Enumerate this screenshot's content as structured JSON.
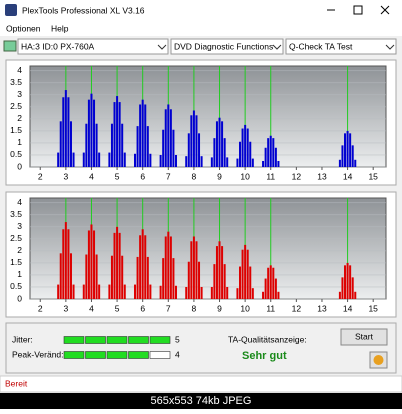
{
  "window": {
    "title": "PlexTools Professional XL V3.16"
  },
  "menu": [
    "Optionen",
    "Help"
  ],
  "toolbar": {
    "drive": "HA:3 ID:0  PX-760A",
    "function": "DVD Diagnostic Functions",
    "test": "Q-Check TA Test"
  },
  "chart_data": [
    {
      "type": "bar",
      "color": "#0000d0",
      "reference_color": "#22cc22",
      "reference_x": [
        3,
        4,
        5,
        6,
        7,
        8,
        9,
        10,
        11,
        14
      ],
      "xlim": [
        1.6,
        15.5
      ],
      "xticks": [
        2,
        3,
        4,
        5,
        6,
        7,
        8,
        9,
        10,
        11,
        12,
        13,
        14,
        15
      ],
      "ylim": [
        0,
        4.2
      ],
      "yticks": [
        0,
        0.5,
        1,
        1.5,
        2,
        2.5,
        3,
        3.5,
        4
      ],
      "x": [
        2.7,
        2.8,
        2.9,
        3,
        3.1,
        3.2,
        3.3,
        3.7,
        3.8,
        3.9,
        4,
        4.1,
        4.2,
        4.3,
        4.7,
        4.8,
        4.9,
        5,
        5.1,
        5.2,
        5.3,
        5.7,
        5.8,
        5.9,
        6,
        6.1,
        6.2,
        6.3,
        6.7,
        6.8,
        6.9,
        7,
        7.1,
        7.2,
        7.3,
        7.7,
        7.8,
        7.9,
        8,
        8.1,
        8.2,
        8.3,
        8.7,
        8.8,
        8.9,
        9,
        9.1,
        9.2,
        9.3,
        9.7,
        9.8,
        9.9,
        10,
        10.1,
        10.2,
        10.3,
        10.7,
        10.8,
        10.9,
        11,
        11.1,
        11.2,
        11.3,
        13.7,
        13.8,
        13.9,
        14,
        14.1,
        14.2,
        14.3
      ],
      "values": [
        0.6,
        1.9,
        2.9,
        3.2,
        2.9,
        1.9,
        0.6,
        0.6,
        1.8,
        2.8,
        3.05,
        2.8,
        1.8,
        0.6,
        0.6,
        1.8,
        2.7,
        2.95,
        2.7,
        1.8,
        0.6,
        0.55,
        1.7,
        2.6,
        2.8,
        2.6,
        1.7,
        0.55,
        0.5,
        1.55,
        2.4,
        2.6,
        2.4,
        1.55,
        0.5,
        0.45,
        1.4,
        2.15,
        2.35,
        2.15,
        1.4,
        0.45,
        0.4,
        1.2,
        1.9,
        2.05,
        1.9,
        1.2,
        0.4,
        0.35,
        1.05,
        1.6,
        1.75,
        1.6,
        1.05,
        0.35,
        0.25,
        0.8,
        1.2,
        1.3,
        1.2,
        0.8,
        0.25,
        0.3,
        0.9,
        1.4,
        1.5,
        1.4,
        0.9,
        0.3
      ]
    },
    {
      "type": "bar",
      "color": "#dd0000",
      "reference_color": "#22cc22",
      "reference_x": [
        3,
        4,
        5,
        6,
        7,
        8,
        9,
        10,
        11,
        14
      ],
      "xlim": [
        1.6,
        15.5
      ],
      "xticks": [
        2,
        3,
        4,
        5,
        6,
        7,
        8,
        9,
        10,
        11,
        12,
        13,
        14,
        15
      ],
      "ylim": [
        0,
        4.2
      ],
      "yticks": [
        0,
        0.5,
        1,
        1.5,
        2,
        2.5,
        3,
        3.5,
        4
      ],
      "x": [
        2.7,
        2.8,
        2.9,
        3,
        3.1,
        3.2,
        3.3,
        3.7,
        3.8,
        3.9,
        4,
        4.1,
        4.2,
        4.3,
        4.7,
        4.8,
        4.9,
        5,
        5.1,
        5.2,
        5.3,
        5.7,
        5.8,
        5.9,
        6,
        6.1,
        6.2,
        6.3,
        6.7,
        6.8,
        6.9,
        7,
        7.1,
        7.2,
        7.3,
        7.7,
        7.8,
        7.9,
        8,
        8.1,
        8.2,
        8.3,
        8.7,
        8.8,
        8.9,
        9,
        9.1,
        9.2,
        9.3,
        9.7,
        9.8,
        9.9,
        10,
        10.1,
        10.2,
        10.3,
        10.7,
        10.8,
        10.9,
        11,
        11.1,
        11.2,
        11.3,
        13.7,
        13.8,
        13.9,
        14,
        14.1,
        14.2,
        14.3
      ],
      "values": [
        0.6,
        1.9,
        2.9,
        3.2,
        2.9,
        1.9,
        0.6,
        0.6,
        1.85,
        2.85,
        3.1,
        2.85,
        1.85,
        0.6,
        0.6,
        1.8,
        2.75,
        3.0,
        2.75,
        1.8,
        0.6,
        0.6,
        1.75,
        2.65,
        2.9,
        2.65,
        1.75,
        0.6,
        0.55,
        1.7,
        2.6,
        2.8,
        2.6,
        1.7,
        0.55,
        0.5,
        1.55,
        2.4,
        2.6,
        2.4,
        1.55,
        0.5,
        0.5,
        1.45,
        2.2,
        2.4,
        2.2,
        1.45,
        0.5,
        0.45,
        1.35,
        2.05,
        2.25,
        2.05,
        1.35,
        0.45,
        0.3,
        0.85,
        1.3,
        1.4,
        1.3,
        0.85,
        0.3,
        0.3,
        0.9,
        1.4,
        1.5,
        1.4,
        0.9,
        0.3
      ]
    }
  ],
  "jitter": {
    "label": "Jitter:",
    "value": 5
  },
  "peak": {
    "label": "Peak-Veränd:",
    "value": 4
  },
  "quality": {
    "label": "TA-Qualitätsanzeige:",
    "value": "Sehr gut"
  },
  "start": "Start",
  "status": "Bereit",
  "caption": "565x553 74kb JPEG"
}
